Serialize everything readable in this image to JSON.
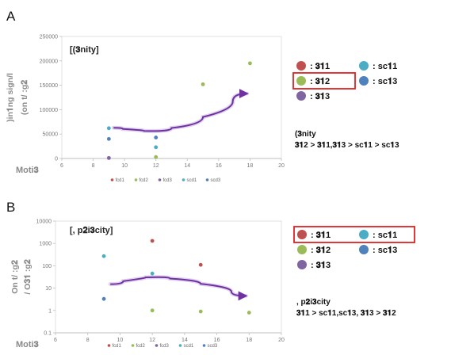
{
  "panels": {
    "A": {
      "letter": "A",
      "key_items": [
        {
          "label": ": 𝟑𝟏1",
          "color": "#c0504d"
        },
        {
          "label": ": sc𝟏1",
          "color": "#4bacc6"
        },
        {
          "label": ": 𝟑𝟏2",
          "color": "#9bbb59",
          "highlighted": true
        },
        {
          "label": ": sc𝟏3",
          "color": "#4f81bd"
        },
        {
          "label": ": 𝟑𝟏3",
          "color": "#8064a2"
        }
      ],
      "note_line1": "(𝟑nity",
      "note_line2": "𝟑𝟏2 > 𝟑𝟏1,𝟑𝟏3 > sc𝟏1 > sc𝟏3"
    },
    "B": {
      "letter": "B",
      "key_items": [
        {
          "label": ": 𝟑𝟏1",
          "color": "#c0504d",
          "highlighted": true
        },
        {
          "label": ": sc𝟏1",
          "color": "#4bacc6",
          "highlighted": true
        },
        {
          "label": ": 𝟑𝟏2",
          "color": "#9bbb59"
        },
        {
          "label": ": sc𝟏3",
          "color": "#4f81bd"
        },
        {
          "label": ": 𝟑𝟏3",
          "color": "#8064a2"
        }
      ],
      "note_line1": ", p𝟐i𝟑city",
      "note_line2": "𝟑𝟏1 > sc𝟏1,sc𝟏3, 𝟑𝟏3 > 𝟑𝟏2"
    }
  },
  "chart_data": [
    {
      "type": "scatter",
      "title": "[(𝟑nity]",
      "ylabel_line1": ")in𝟏ng sign/l",
      "ylabel_line2": "(on t/ :g𝟐",
      "xlabel": "Moti𝟑",
      "xlim": [
        6,
        20
      ],
      "ylim": [
        0,
        250000
      ],
      "xticks": [
        6,
        8,
        10,
        12,
        14,
        16,
        18,
        20
      ],
      "yticks": [
        0,
        50000,
        100000,
        150000,
        200000,
        250000
      ],
      "ytick_labels": [
        "0",
        "50000",
        "100000",
        "150000",
        "200000",
        "250000"
      ],
      "legend_position": "bottom",
      "series": [
        {
          "name": "fcd1",
          "color": "#c0504d",
          "x": [],
          "y": []
        },
        {
          "name": "fcd2",
          "color": "#9bbb59",
          "x": [
            12,
            15,
            18
          ],
          "y": [
            3000,
            152000,
            195000
          ]
        },
        {
          "name": "fcd3",
          "color": "#8064a2",
          "x": [
            9
          ],
          "y": [
            1000
          ]
        },
        {
          "name": "scd1",
          "color": "#4bacc6",
          "x": [
            9,
            12
          ],
          "y": [
            62000,
            23000
          ]
        },
        {
          "name": "scd3",
          "color": "#4f81bd",
          "x": [
            9,
            12
          ],
          "y": [
            40000,
            43000
          ]
        }
      ],
      "trend": {
        "color": "#7030a0",
        "x": [
          9.3,
          10.5,
          12,
          14,
          16,
          17.8
        ],
        "y": [
          63000,
          58000,
          55000,
          70000,
          100000,
          133000
        ]
      }
    },
    {
      "type": "scatter",
      "title": "[, p𝟐i𝟑city]",
      "ylabel_line1": "On t/ :g𝟐",
      "ylabel_line2": "/ O𝟑𝟏 :g𝟐",
      "xlabel": "Moti𝟑",
      "xlim": [
        6,
        20
      ],
      "ylim": [
        0.1,
        10000
      ],
      "yscale": "log",
      "xticks": [
        6,
        8,
        10,
        12,
        14,
        16,
        18,
        20
      ],
      "yticks": [
        0.1,
        1,
        10,
        100,
        1000,
        10000
      ],
      "ytick_labels": [
        "0.1",
        "1",
        "10",
        "100",
        "1000",
        "10000"
      ],
      "legend_position": "bottom",
      "series": [
        {
          "name": "fcd1",
          "color": "#c0504d",
          "x": [
            12,
            15
          ],
          "y": [
            1300,
            110
          ]
        },
        {
          "name": "fcd2",
          "color": "#9bbb59",
          "x": [
            12,
            15,
            18
          ],
          "y": [
            1,
            0.9,
            0.8
          ]
        },
        {
          "name": "fcd3",
          "color": "#8064a2",
          "x": [],
          "y": []
        },
        {
          "name": "scd1",
          "color": "#4bacc6",
          "x": [
            9,
            12
          ],
          "y": [
            270,
            45
          ]
        },
        {
          "name": "scd3",
          "color": "#4f81bd",
          "x": [
            9
          ],
          "y": [
            3.3
          ]
        }
      ],
      "trend": {
        "color": "#7030a0",
        "x": [
          9.4,
          11,
          12.2,
          14,
          16,
          17.8
        ],
        "y": [
          15,
          28,
          33,
          22,
          11,
          4.5
        ]
      }
    }
  ]
}
